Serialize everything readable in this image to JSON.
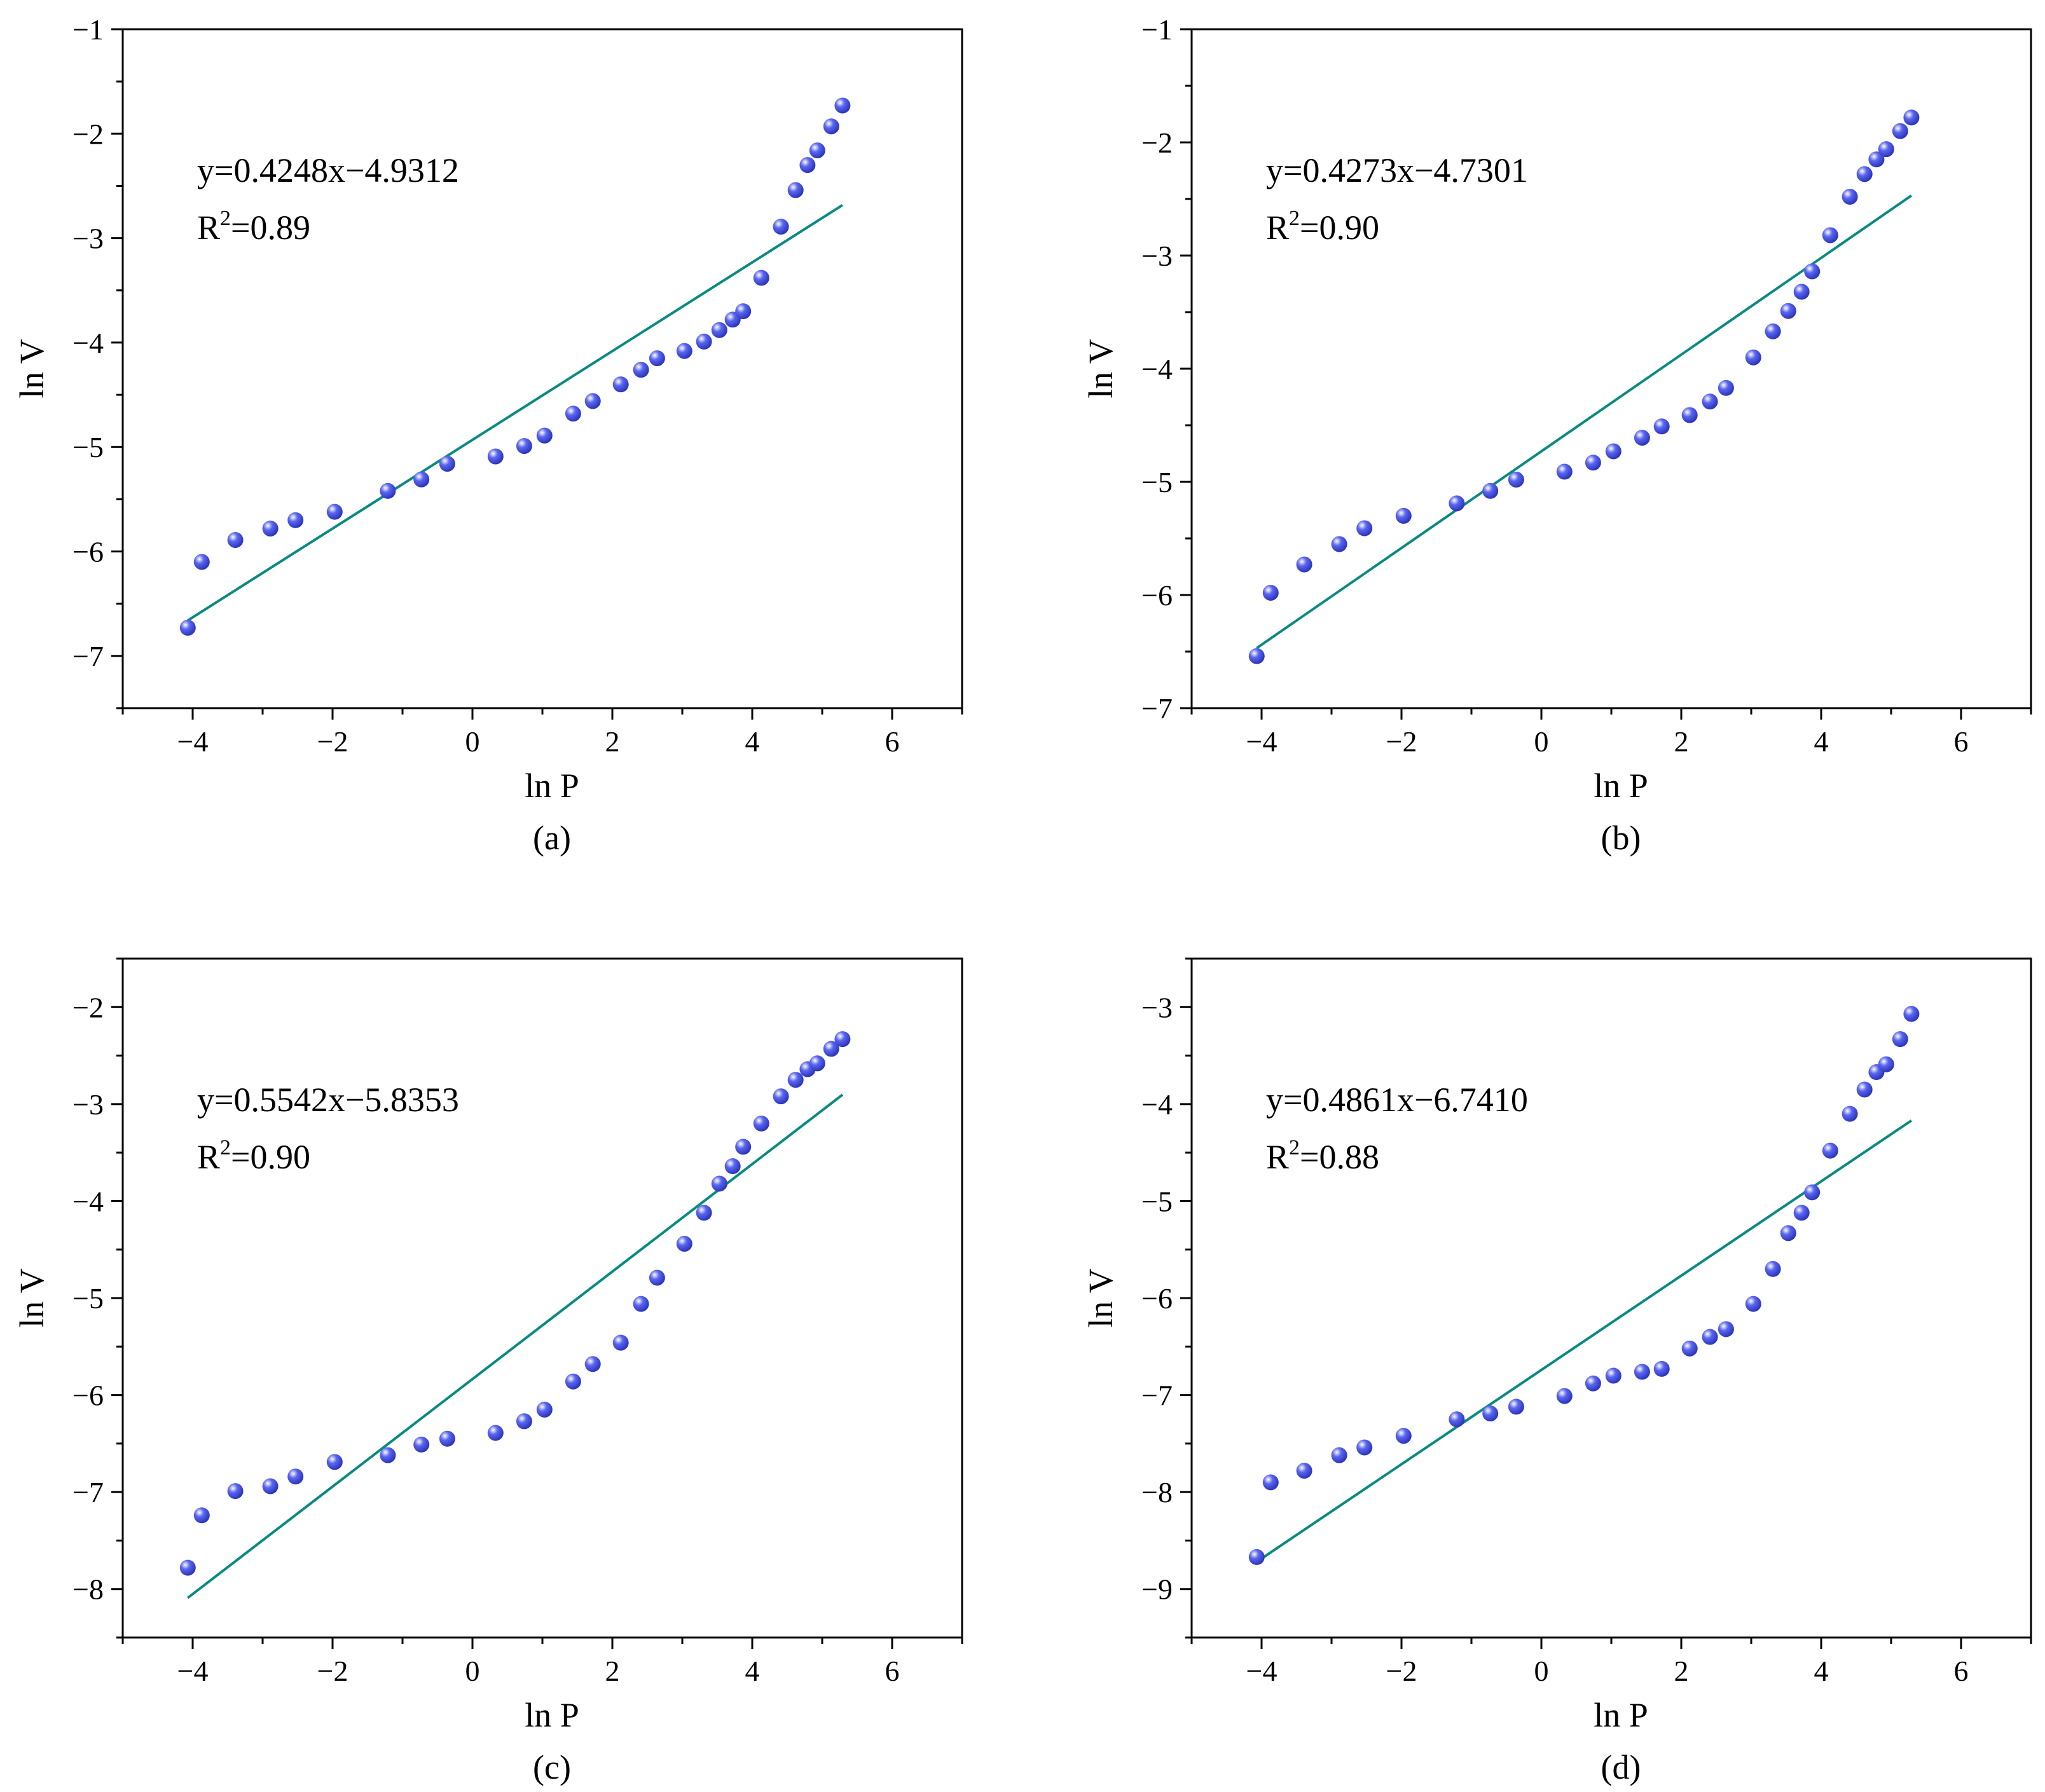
{
  "colors": {
    "fit_line": "#0a8a80",
    "marker": "#5a66f0",
    "marker_highlight": "#ffffff",
    "marker_dark": "#2a33b8",
    "axis": "#000000"
  },
  "chart_data": [
    {
      "type": "scatter",
      "panel_label": "(a)",
      "xlabel": "ln P",
      "ylabel": "ln V",
      "xlim": [
        -5,
        7
      ],
      "ylim": [
        -7.5,
        -1
      ],
      "xticks": [
        -4,
        -2,
        0,
        2,
        4,
        6
      ],
      "yticks": [
        -7,
        -6,
        -5,
        -4,
        -3,
        -2,
        -1
      ],
      "equation": "y=0.4248x−4.9312",
      "r2_prefix": "R",
      "r2_sup": "2",
      "r2_value": "=0.89",
      "fit": {
        "slope": 0.4248,
        "intercept": -4.9312,
        "x_range": [
          -4.07,
          5.29
        ]
      },
      "x": [
        -4.07,
        -3.87,
        -3.39,
        -2.89,
        -2.53,
        -1.97,
        -1.21,
        -0.73,
        -0.36,
        0.33,
        0.74,
        1.03,
        1.44,
        1.72,
        2.12,
        2.41,
        2.64,
        3.03,
        3.31,
        3.53,
        3.72,
        3.87,
        4.13,
        4.41,
        4.62,
        4.79,
        4.93,
        5.13,
        5.29
      ],
      "y": [
        -6.73,
        -6.1,
        -5.89,
        -5.78,
        -5.7,
        -5.62,
        -5.42,
        -5.31,
        -5.16,
        -5.09,
        -4.99,
        -4.89,
        -4.68,
        -4.56,
        -4.4,
        -4.26,
        -4.15,
        -4.08,
        -3.99,
        -3.88,
        -3.78,
        -3.7,
        -3.38,
        -2.89,
        -2.54,
        -2.3,
        -2.16,
        -1.93,
        -1.73
      ]
    },
    {
      "type": "scatter",
      "panel_label": "(b)",
      "xlabel": "ln P",
      "ylabel": "ln V",
      "xlim": [
        -5,
        7
      ],
      "ylim": [
        -7,
        -1
      ],
      "xticks": [
        -4,
        -2,
        0,
        2,
        4,
        6
      ],
      "yticks": [
        -7,
        -6,
        -5,
        -4,
        -3,
        -2,
        -1
      ],
      "equation": "y=0.4273x−4.7301",
      "r2_prefix": "R",
      "r2_sup": "2",
      "r2_value": "=0.90",
      "fit": {
        "slope": 0.4273,
        "intercept": -4.7301,
        "x_range": [
          -4.07,
          5.29
        ]
      },
      "x": [
        -4.07,
        -3.87,
        -3.39,
        -2.89,
        -2.53,
        -1.97,
        -1.21,
        -0.73,
        -0.36,
        0.33,
        0.74,
        1.03,
        1.44,
        1.72,
        2.12,
        2.41,
        2.64,
        3.03,
        3.31,
        3.53,
        3.72,
        3.87,
        4.13,
        4.41,
        4.62,
        4.79,
        4.93,
        5.13,
        5.29
      ],
      "y": [
        -6.54,
        -5.98,
        -5.73,
        -5.55,
        -5.41,
        -5.3,
        -5.19,
        -5.08,
        -4.98,
        -4.91,
        -4.83,
        -4.73,
        -4.61,
        -4.51,
        -4.41,
        -4.29,
        -4.17,
        -3.9,
        -3.67,
        -3.49,
        -3.32,
        -3.14,
        -2.82,
        -2.48,
        -2.28,
        -2.15,
        -2.06,
        -1.9,
        -1.78
      ]
    },
    {
      "type": "scatter",
      "panel_label": "(c)",
      "xlabel": "ln P",
      "ylabel": "ln V",
      "xlim": [
        -5,
        7
      ],
      "ylim": [
        -8.5,
        -1.5
      ],
      "xticks": [
        -4,
        -2,
        0,
        2,
        4,
        6
      ],
      "yticks": [
        -8,
        -7,
        -6,
        -5,
        -4,
        -3,
        -2
      ],
      "equation": "y=0.5542x−5.8353",
      "r2_prefix": "R",
      "r2_sup": "2",
      "r2_value": "=0.90",
      "fit": {
        "slope": 0.5542,
        "intercept": -5.8353,
        "x_range": [
          -4.07,
          5.29
        ]
      },
      "x": [
        -4.07,
        -3.87,
        -3.39,
        -2.89,
        -2.53,
        -1.97,
        -1.21,
        -0.73,
        -0.36,
        0.33,
        0.74,
        1.03,
        1.44,
        1.72,
        2.12,
        2.41,
        2.64,
        3.03,
        3.31,
        3.53,
        3.72,
        3.87,
        4.13,
        4.41,
        4.62,
        4.79,
        4.93,
        5.13,
        5.29
      ],
      "y": [
        -7.78,
        -7.24,
        -6.99,
        -6.94,
        -6.84,
        -6.69,
        -6.62,
        -6.51,
        -6.45,
        -6.39,
        -6.27,
        -6.15,
        -5.86,
        -5.68,
        -5.46,
        -5.06,
        -4.79,
        -4.44,
        -4.12,
        -3.82,
        -3.64,
        -3.44,
        -3.2,
        -2.92,
        -2.75,
        -2.64,
        -2.58,
        -2.43,
        -2.33
      ]
    },
    {
      "type": "scatter",
      "panel_label": "(d)",
      "xlabel": "ln P",
      "ylabel": "ln V",
      "xlim": [
        -5,
        7
      ],
      "ylim": [
        -9.5,
        -2.5
      ],
      "xticks": [
        -4,
        -2,
        0,
        2,
        4,
        6
      ],
      "yticks": [
        -9,
        -8,
        -7,
        -6,
        -5,
        -4,
        -3
      ],
      "equation": "y=0.4861x−6.7410",
      "r2_prefix": "R",
      "r2_sup": "2",
      "r2_value": "=0.88",
      "fit": {
        "slope": 0.4861,
        "intercept": -6.741,
        "x_range": [
          -4.07,
          5.29
        ]
      },
      "x": [
        -4.07,
        -3.87,
        -3.39,
        -2.89,
        -2.53,
        -1.97,
        -1.21,
        -0.73,
        -0.36,
        0.33,
        0.74,
        1.03,
        1.44,
        1.72,
        2.12,
        2.41,
        2.64,
        3.03,
        3.31,
        3.53,
        3.72,
        3.87,
        4.13,
        4.41,
        4.62,
        4.79,
        4.93,
        5.13,
        5.29
      ],
      "y": [
        -8.67,
        -7.9,
        -7.78,
        -7.62,
        -7.54,
        -7.42,
        -7.25,
        -7.19,
        -7.12,
        -7.01,
        -6.88,
        -6.8,
        -6.76,
        -6.73,
        -6.52,
        -6.4,
        -6.32,
        -6.06,
        -5.7,
        -5.33,
        -5.12,
        -4.91,
        -4.48,
        -4.1,
        -3.85,
        -3.67,
        -3.59,
        -3.33,
        -3.07
      ]
    }
  ]
}
